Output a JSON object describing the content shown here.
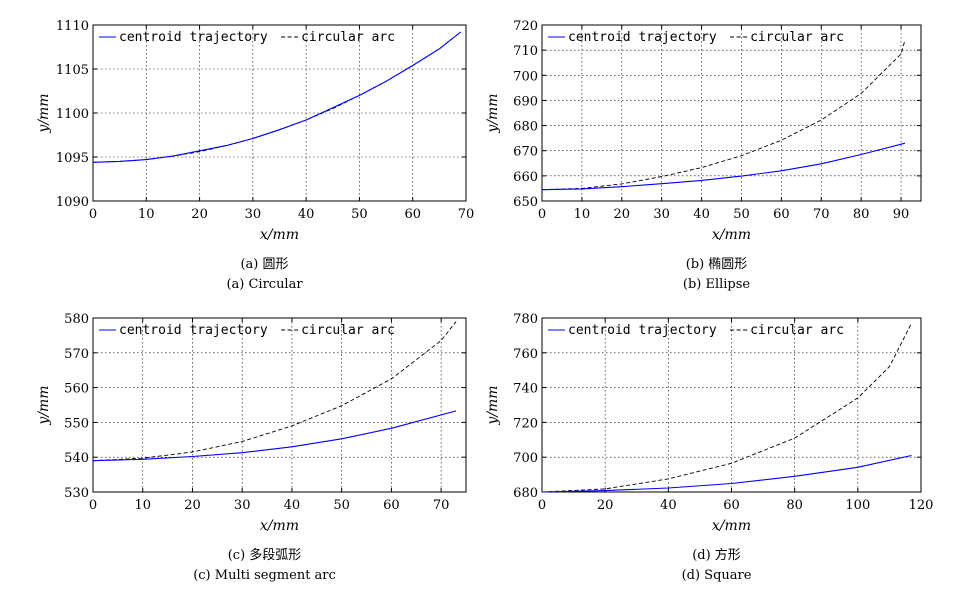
{
  "chart_data": [
    {
      "type": "line",
      "caption_cn": "(a) 圆形",
      "caption_en": "(a) Circular",
      "xlabel": "x/mm",
      "ylabel": "y/mm",
      "xlim": [
        0,
        70
      ],
      "ylim": [
        1090,
        1110
      ],
      "xticks": [
        0,
        10,
        20,
        30,
        40,
        50,
        60,
        70
      ],
      "yticks": [
        1090,
        1095,
        1100,
        1105,
        1110
      ],
      "grid": true,
      "legend_position": "top-left",
      "series": [
        {
          "name": "centroid trajectory",
          "color": "#0000ff",
          "style": "solid",
          "x": [
            0,
            5,
            10,
            15,
            20,
            25,
            30,
            35,
            40,
            45,
            50,
            55,
            60,
            65,
            69
          ],
          "y": [
            1094.4,
            1094.5,
            1094.7,
            1095.1,
            1095.7,
            1096.3,
            1097.1,
            1098.1,
            1099.2,
            1100.6,
            1102.0,
            1103.6,
            1105.4,
            1107.3,
            1109.2
          ]
        },
        {
          "name": "circular arc",
          "color": "#000000",
          "style": "dashed",
          "x": [
            0,
            5,
            10,
            15,
            20,
            25,
            30,
            35,
            40,
            45,
            50,
            55,
            60,
            65,
            69
          ],
          "y": [
            1094.4,
            1094.5,
            1094.7,
            1095.1,
            1095.6,
            1096.3,
            1097.1,
            1098.1,
            1099.2,
            1100.5,
            1102.0,
            1103.6,
            1105.4,
            1107.3,
            1109.2
          ]
        }
      ]
    },
    {
      "type": "line",
      "caption_cn": "(b) 椭圆形",
      "caption_en": "(b) Ellipse",
      "xlabel": "x/mm",
      "ylabel": "y/mm",
      "xlim": [
        0,
        95
      ],
      "ylim": [
        650,
        720
      ],
      "xticks": [
        0,
        10,
        20,
        30,
        40,
        50,
        60,
        70,
        80,
        90
      ],
      "yticks": [
        650,
        660,
        670,
        680,
        690,
        700,
        710,
        720
      ],
      "grid": true,
      "legend_position": "top-left",
      "series": [
        {
          "name": "centroid trajectory",
          "color": "#0000ff",
          "style": "solid",
          "x": [
            0,
            10,
            20,
            30,
            40,
            50,
            60,
            70,
            80,
            91
          ],
          "y": [
            654.5,
            654.8,
            655.7,
            656.9,
            658.2,
            659.9,
            662.0,
            664.8,
            668.5,
            673.0
          ]
        },
        {
          "name": "circular arc",
          "color": "#000000",
          "style": "dashed",
          "x": [
            0,
            10,
            20,
            30,
            40,
            50,
            60,
            70,
            80,
            90,
            91
          ],
          "y": [
            654.5,
            655.0,
            656.8,
            659.7,
            663.3,
            668.0,
            674.2,
            682.2,
            692.8,
            708.5,
            714.0
          ]
        }
      ]
    },
    {
      "type": "line",
      "caption_cn": "(c) 多段弧形",
      "caption_en": "(c) Multi segment arc",
      "xlabel": "x/mm",
      "ylabel": "y/mm",
      "xlim": [
        0,
        75
      ],
      "ylim": [
        530,
        580
      ],
      "xticks": [
        0,
        10,
        20,
        30,
        40,
        50,
        60,
        70
      ],
      "yticks": [
        530,
        540,
        550,
        560,
        570,
        580
      ],
      "grid": true,
      "legend_position": "top-left",
      "series": [
        {
          "name": "centroid trajectory",
          "color": "#0000ff",
          "style": "solid",
          "x": [
            0,
            10,
            20,
            30,
            40,
            50,
            60,
            73
          ],
          "y": [
            539.0,
            539.4,
            540.2,
            541.3,
            543.0,
            545.3,
            548.3,
            553.3
          ]
        },
        {
          "name": "circular arc",
          "color": "#000000",
          "style": "dashed",
          "x": [
            0,
            10,
            20,
            30,
            40,
            50,
            60,
            70,
            73
          ],
          "y": [
            539.0,
            539.7,
            541.5,
            544.5,
            549.0,
            554.8,
            562.5,
            573.5,
            579.0
          ]
        }
      ]
    },
    {
      "type": "line",
      "caption_cn": "(d) 方形",
      "caption_en": "(d) Square",
      "xlabel": "x/mm",
      "ylabel": "y/mm",
      "xlim": [
        0,
        120
      ],
      "ylim": [
        680,
        780
      ],
      "xticks": [
        0,
        20,
        40,
        60,
        80,
        100,
        120
      ],
      "yticks": [
        680,
        700,
        720,
        740,
        760,
        780
      ],
      "grid": true,
      "legend_position": "top-left",
      "series": [
        {
          "name": "centroid trajectory",
          "color": "#0000ff",
          "style": "solid",
          "x": [
            0,
            20,
            40,
            60,
            80,
            100,
            117
          ],
          "y": [
            680.0,
            680.8,
            682.3,
            684.9,
            689.0,
            694.2,
            701.0
          ]
        },
        {
          "name": "circular arc",
          "color": "#000000",
          "style": "dashed",
          "x": [
            0,
            20,
            40,
            60,
            80,
            100,
            110,
            117
          ],
          "y": [
            680.0,
            681.8,
            687.5,
            696.5,
            711.0,
            734.0,
            752.0,
            777.0
          ]
        }
      ]
    }
  ]
}
